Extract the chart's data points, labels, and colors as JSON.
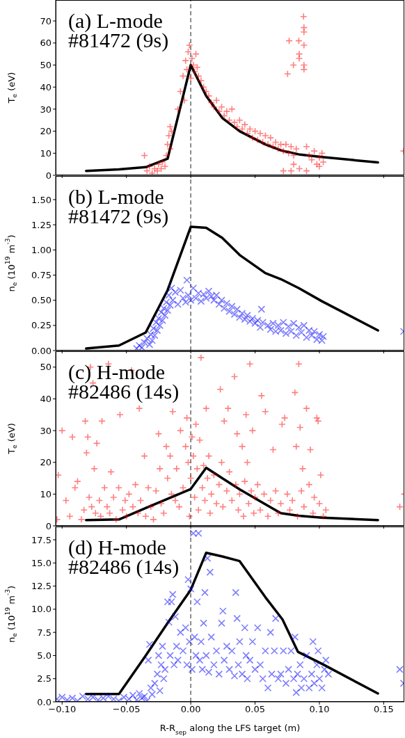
{
  "chart_data": [
    {
      "type": "scatter",
      "ylabel": "T$_{e}$ (eV)",
      "annotations": [
        "(a) L-mode",
        "#81472 (9s)"
      ],
      "xlim": [
        -0.105,
        0.166
      ],
      "xticks": [
        {
          "value": -0.1,
          "label": null
        },
        {
          "value": -0.05,
          "label": null
        },
        {
          "value": 0,
          "label": null
        },
        {
          "value": 0.05,
          "label": null
        },
        {
          "value": 0.1,
          "label": null
        },
        {
          "value": 0.15,
          "label": null
        }
      ],
      "ylim": [
        0,
        79.5
      ],
      "yticks": [
        0,
        10,
        20,
        30,
        40,
        50,
        60,
        70
      ],
      "tick_labels": "y",
      "ref_lines": [
        {
          "axis": "x",
          "value": 0,
          "color": "#808080",
          "line_style": "dashed"
        }
      ],
      "series": [
        {
          "type": "scatter",
          "color": "#ff0000",
          "marker": "plus",
          "x": [
            -0.036,
            -0.034,
            -0.032,
            -0.03,
            -0.028,
            -0.026,
            -0.025,
            -0.023,
            -0.022,
            -0.02,
            -0.019,
            -0.018,
            -0.017,
            -0.016,
            -0.016,
            -0.015,
            -0.01,
            -0.008,
            -0.006,
            -0.005,
            -0.004,
            -0.003,
            -0.002,
            -0.001,
            0,
            0.001,
            0.002,
            0.003,
            0.004,
            0.005,
            0.006,
            0.008,
            0.01,
            0.012,
            0.014,
            0.016,
            0.018,
            0.02,
            0.022,
            0.024,
            0.026,
            0.028,
            0.03,
            0.032,
            0.034,
            0.036,
            0.038,
            0.04,
            0.042,
            0.044,
            0.046,
            0.048,
            0.05,
            0.052,
            0.054,
            0.056,
            0.058,
            0.06,
            0.062,
            0.064,
            0.066,
            0.068,
            0.07,
            0.072,
            0.072,
            0.074,
            0.0753,
            0.076,
            0.0765,
            0.078,
            0.078,
            0.0798,
            0.08,
            0.08,
            0.082,
            0.084,
            0.0843,
            0.0843,
            0.0845,
            0.0877,
            0.088,
            0.088,
            0.088,
            0.088,
            0.088,
            0.09,
            0.09,
            0.092,
            0.094,
            0.096,
            0.098,
            0.1,
            0.1,
            0.102,
            0.103,
            0.1655
          ],
          "values": [
            9,
            2,
            4,
            1,
            3,
            2,
            5,
            3,
            6,
            4,
            9,
            14,
            18,
            22,
            12,
            20,
            30,
            38,
            45,
            34,
            52,
            48,
            56,
            59,
            44,
            53,
            50,
            47,
            55,
            49,
            45,
            43,
            40,
            38,
            36,
            33,
            31,
            34,
            29,
            31,
            27,
            29,
            25,
            30,
            24,
            22,
            25,
            21,
            23,
            19,
            21,
            17,
            20,
            16,
            19,
            15,
            18,
            14,
            17,
            13,
            15,
            12,
            14,
            2,
            11,
            14,
            46,
            10,
            61,
            2,
            13,
            50,
            5,
            9,
            12,
            61,
            55,
            53,
            3,
            72,
            67,
            65,
            59,
            50,
            48,
            2,
            13,
            9,
            7,
            11,
            5,
            8,
            4,
            10,
            6,
            11
          ]
        },
        {
          "type": "line",
          "color": "#000000",
          "marker": "none",
          "line_style": "solid",
          "x": [
            -0.0813,
            -0.0558,
            -0.035,
            -0.018,
            0,
            0.012,
            0.0245,
            0.038,
            0.058,
            0.07,
            0.084,
            0.102,
            0.1455
          ],
          "values": [
            2,
            2.7,
            3.7,
            7.5,
            50,
            36,
            26,
            20,
            14,
            11.3,
            9.5,
            8.3,
            5.8
          ]
        }
      ]
    },
    {
      "type": "scatter",
      "ylabel": "n$_{e}$ (10$^{19}$ m$^{-3}$)",
      "annotations": [
        "(b) L-mode",
        "#81472 (9s)"
      ],
      "xlim": [
        -0.105,
        0.166
      ],
      "xticks": [
        {
          "value": -0.1,
          "label": null
        },
        {
          "value": -0.05,
          "label": null
        },
        {
          "value": 0,
          "label": null
        },
        {
          "value": 0.05,
          "label": null
        },
        {
          "value": 0.1,
          "label": null
        },
        {
          "value": 0.15,
          "label": null
        }
      ],
      "ylim": [
        0,
        1.735
      ],
      "yticks": [
        {
          "value": 0,
          "label": "0.00"
        },
        {
          "value": 0.25,
          "label": "0.25"
        },
        {
          "value": 0.5,
          "label": "0.50"
        },
        {
          "value": 0.75,
          "label": "0.75"
        },
        {
          "value": 1,
          "label": "1.00"
        },
        {
          "value": 1.25,
          "label": "1.25"
        },
        {
          "value": 1.5,
          "label": "1.50"
        }
      ],
      "tick_labels": "y",
      "ref_lines": [
        {
          "axis": "x",
          "value": 0,
          "color": "#808080",
          "line_style": "dashed"
        }
      ],
      "series": [
        {
          "type": "scatter",
          "color": "#0000ff",
          "marker": "cross",
          "x": [
            -0.042,
            -0.04,
            -0.038,
            -0.036,
            -0.034,
            -0.032,
            -0.031,
            -0.03,
            -0.029,
            -0.028,
            -0.027,
            -0.026,
            -0.025,
            -0.024,
            -0.023,
            -0.022,
            -0.021,
            -0.02,
            -0.019,
            -0.018,
            -0.017,
            -0.016,
            -0.015,
            -0.014,
            -0.012,
            -0.01,
            -0.008,
            -0.006,
            -0.004,
            -0.003,
            -0.002,
            0,
            0.002,
            0.004,
            0.006,
            0.008,
            0.01,
            0.012,
            0.014,
            0.016,
            0.018,
            0.02,
            0.022,
            0.024,
            0.026,
            0.028,
            0.03,
            0.032,
            0.034,
            0.036,
            0.038,
            0.04,
            0.042,
            0.044,
            0.046,
            0.048,
            0.05,
            0.052,
            0.054,
            0.055,
            0.056,
            0.06,
            0.062,
            0.064,
            0.066,
            0.068,
            0.07,
            0.072,
            0.074,
            0.076,
            0.078,
            0.08,
            0.082,
            0.084,
            0.086,
            0.088,
            0.09,
            0.092,
            0.094,
            0.096,
            0.098,
            0.1,
            0.102,
            0.103,
            0.1655
          ],
          "values": [
            0.02,
            0.05,
            0.03,
            0.08,
            0.12,
            0.06,
            0.16,
            0.1,
            0.22,
            0.15,
            0.28,
            0.2,
            0.32,
            0.25,
            0.38,
            0.3,
            0.42,
            0.35,
            0.48,
            0.4,
            0.55,
            0.45,
            0.62,
            0.5,
            0.58,
            0.46,
            0.6,
            0.52,
            0.48,
            0.7,
            0.55,
            0.5,
            0.62,
            0.52,
            0.57,
            0.49,
            0.56,
            0.52,
            0.59,
            0.54,
            0.5,
            0.55,
            0.46,
            0.5,
            0.42,
            0.47,
            0.39,
            0.44,
            0.36,
            0.41,
            0.33,
            0.37,
            0.31,
            0.35,
            0.29,
            0.32,
            0.27,
            0.3,
            0.23,
            0.41,
            0.28,
            0.25,
            0.21,
            0.27,
            0.19,
            0.25,
            0.2,
            0.28,
            0.17,
            0.24,
            0.19,
            0.27,
            0.15,
            0.23,
            0.18,
            0.25,
            0.13,
            0.2,
            0.15,
            0.19,
            0.11,
            0.16,
            0.1,
            0.14,
            0.19
          ]
        },
        {
          "type": "line",
          "color": "#000000",
          "marker": "none",
          "line_style": "solid",
          "x": [
            -0.0813,
            -0.0558,
            -0.035,
            -0.018,
            0,
            0.012,
            0.0245,
            0.038,
            0.058,
            0.07,
            0.084,
            0.102,
            0.1455
          ],
          "values": [
            0.02,
            0.05,
            0.18,
            0.6,
            1.23,
            1.22,
            1.12,
            0.95,
            0.77,
            0.71,
            0.62,
            0.49,
            0.2
          ]
        }
      ]
    },
    {
      "type": "scatter",
      "ylabel": "T$_{e}$ (eV)",
      "annotations": [
        "(c) H-mode",
        "#82486 (14s)"
      ],
      "xlim": [
        -0.105,
        0.166
      ],
      "xticks": [
        {
          "value": -0.1,
          "label": null
        },
        {
          "value": -0.05,
          "label": null
        },
        {
          "value": 0,
          "label": null
        },
        {
          "value": 0.05,
          "label": null
        },
        {
          "value": 0.1,
          "label": null
        },
        {
          "value": 0.15,
          "label": null
        }
      ],
      "ylim": [
        0,
        55
      ],
      "yticks": [
        0,
        10,
        20,
        30,
        40,
        50
      ],
      "tick_labels": "y",
      "ref_lines": [
        {
          "axis": "x",
          "value": 0,
          "color": "#808080",
          "line_style": "dashed"
        }
      ],
      "series": [
        {
          "type": "scatter",
          "color": "#ff0000",
          "marker": "plus",
          "x": [
            -0.104,
            -0.103,
            -0.1,
            -0.097,
            -0.094,
            -0.092,
            -0.09,
            -0.088,
            -0.085,
            -0.083,
            -0.082,
            -0.081,
            -0.08,
            -0.079,
            -0.078,
            -0.077,
            -0.076,
            -0.075,
            -0.074,
            -0.073,
            -0.071,
            -0.07,
            -0.069,
            -0.067,
            -0.065,
            -0.064,
            -0.063,
            -0.062,
            -0.06,
            -0.058,
            -0.056,
            -0.055,
            -0.053,
            -0.051,
            -0.05,
            -0.048,
            -0.046,
            -0.045,
            -0.043,
            -0.041,
            -0.04,
            -0.039,
            -0.036,
            -0.035,
            -0.033,
            -0.031,
            -0.029,
            -0.027,
            -0.025,
            -0.024,
            -0.023,
            -0.021,
            -0.019,
            -0.018,
            -0.016,
            -0.015,
            -0.014,
            -0.012,
            -0.011,
            -0.009,
            -0.008,
            -0.006,
            -0.004,
            -0.003,
            -0.002,
            -0.001,
            0,
            0.001,
            0.002,
            0.003,
            0.004,
            0.005,
            0.006,
            0.007,
            0.008,
            0.009,
            0.01,
            0.011,
            0.012,
            0.013,
            0.014,
            0.015,
            0.016,
            0.018,
            0.02,
            0.022,
            0.023,
            0.024,
            0.025,
            0.026,
            0.028,
            0.029,
            0.03,
            0.032,
            0.034,
            0.035,
            0.036,
            0.037,
            0.038,
            0.04,
            0.041,
            0.042,
            0.043,
            0.044,
            0.045,
            0.046,
            0.047,
            0.048,
            0.049,
            0.05,
            0.052,
            0.054,
            0.055,
            0.057,
            0.058,
            0.06,
            0.062,
            0.064,
            0.066,
            0.068,
            0.07,
            0.071,
            0.073,
            0.075,
            0.077,
            0.079,
            0.081,
            0.082,
            0.083,
            0.084,
            0.085,
            0.086,
            0.087,
            0.088,
            0.09,
            0.092,
            0.093,
            0.095,
            0.096,
            0.098,
            0.099,
            0.1,
            0.101,
            0.103,
            0.105,
            0.1625,
            0.166
          ],
          "values": [
            2,
            16,
            30,
            8,
            3,
            28,
            12,
            14,
            2,
            5,
            33,
            23,
            28,
            9,
            50,
            6,
            45,
            18,
            4,
            26,
            8,
            3,
            33,
            12,
            6,
            51,
            4,
            17,
            9,
            2,
            12,
            35,
            5,
            8,
            3,
            10,
            49,
            6,
            13,
            4,
            37,
            8,
            22,
            3,
            12,
            6,
            2,
            11,
            29,
            18,
            7,
            4,
            25,
            15,
            22,
            10,
            36,
            8,
            18,
            6,
            30,
            12,
            25,
            34,
            20,
            3,
            15,
            28,
            22,
            9,
            32,
            18,
            5,
            27,
            53,
            12,
            19,
            8,
            37,
            15,
            22,
            4,
            10,
            16,
            7,
            13,
            43,
            20,
            6,
            33,
            11,
            37,
            17,
            8,
            47,
            13,
            29,
            5,
            10,
            25,
            3,
            14,
            35,
            20,
            7,
            51,
            11,
            30,
            4,
            9,
            13,
            5,
            41,
            10,
            36,
            3,
            8,
            24,
            11,
            4,
            7,
            32,
            34,
            10,
            5,
            8,
            42,
            25,
            3,
            51,
            31,
            11,
            18,
            6,
            37,
            13,
            24,
            4,
            9,
            34,
            33,
            7,
            16,
            3,
            5,
            6,
            10
          ]
        },
        {
          "type": "line",
          "color": "#000000",
          "marker": "none",
          "line_style": "solid",
          "x": [
            -0.0813,
            -0.0558,
            -0.035,
            -0.018,
            0,
            0.012,
            0.0245,
            0.038,
            0.058,
            0.07,
            0.084,
            0.102,
            0.1455
          ],
          "values": [
            1.8,
            2,
            5.6,
            8.5,
            11.6,
            18.3,
            15,
            11.5,
            6.8,
            4,
            3.2,
            2.6,
            1.8
          ]
        }
      ]
    },
    {
      "type": "scatter",
      "ylabel": "n$_{e}$ (10$^{19}$ m$^{-3}$)",
      "xlabel": "R-R$_{sep}$ along the LFS target (m)",
      "annotations": [
        "(d) H-mode",
        "#82486 (14s)"
      ],
      "xlim": [
        -0.105,
        0.166
      ],
      "xticks": [
        {
          "value": -0.1,
          "label": "−0.10"
        },
        {
          "value": -0.05,
          "label": "−0.05"
        },
        {
          "value": 0,
          "label": "0.00"
        },
        {
          "value": 0.05,
          "label": "0.05"
        },
        {
          "value": 0.1,
          "label": "0.10"
        },
        {
          "value": 0.15,
          "label": "0.15"
        }
      ],
      "ylim": [
        0,
        18.93
      ],
      "yticks": [
        {
          "value": 0,
          "label": "0.0"
        },
        {
          "value": 2.5,
          "label": "2.5"
        },
        {
          "value": 5,
          "label": "5.0"
        },
        {
          "value": 7.5,
          "label": "7.5"
        },
        {
          "value": 10,
          "label": "10.0"
        },
        {
          "value": 12.5,
          "label": "12.5"
        },
        {
          "value": 15,
          "label": "15.0"
        },
        {
          "value": 17.5,
          "label": "17.5"
        }
      ],
      "ref_lines": [
        {
          "axis": "x",
          "value": 0,
          "color": "#808080",
          "line_style": "dashed"
        }
      ],
      "series": [
        {
          "type": "scatter",
          "color": "#0000ff",
          "marker": "cross",
          "x": [
            -0.104,
            -0.1,
            -0.096,
            -0.092,
            -0.088,
            -0.084,
            -0.08,
            -0.076,
            -0.072,
            -0.068,
            -0.064,
            -0.06,
            -0.056,
            -0.052,
            -0.048,
            -0.045,
            -0.042,
            -0.04,
            -0.038,
            -0.036,
            -0.034,
            -0.033,
            -0.032,
            -0.031,
            -0.03,
            -0.028,
            -0.026,
            -0.025,
            -0.024,
            -0.023,
            -0.022,
            -0.021,
            -0.02,
            -0.018,
            -0.017,
            -0.016,
            -0.015,
            -0.014,
            -0.013,
            -0.012,
            -0.011,
            -0.01,
            -0.008,
            -0.006,
            -0.004,
            -0.003,
            -0.002,
            -0.001,
            0,
            0.001,
            0.002,
            0.003,
            0.004,
            0.005,
            0.006,
            0.007,
            0.008,
            0.009,
            0.01,
            0.011,
            0.012,
            0.013,
            0.014,
            0.015,
            0.016,
            0.018,
            0.02,
            0.022,
            0.024,
            0.025,
            0.026,
            0.028,
            0.03,
            0.032,
            0.034,
            0.035,
            0.036,
            0.037,
            0.038,
            0.04,
            0.042,
            0.043,
            0.044,
            0.046,
            0.048,
            0.05,
            0.052,
            0.054,
            0.056,
            0.058,
            0.06,
            0.062,
            0.063,
            0.065,
            0.066,
            0.068,
            0.07,
            0.072,
            0.074,
            0.076,
            0.078,
            0.08,
            0.081,
            0.082,
            0.083,
            0.085,
            0.086,
            0.088,
            0.09,
            0.092,
            0.094,
            0.095,
            0.096,
            0.098,
            0.099,
            0.1,
            0.102,
            0.104,
            0.105,
            0.107,
            0.1625,
            0.1655
          ],
          "values": [
            0.3,
            0.5,
            0.2,
            0.4,
            0.1,
            0.6,
            0.3,
            0.5,
            0.2,
            0.4,
            0.6,
            0.3,
            0.1,
            0.5,
            0.3,
            0.7,
            0.2,
            0.9,
            0.4,
            0.6,
            0.1,
            4.5,
            6.2,
            1.5,
            0.8,
            2,
            3,
            5,
            1.2,
            4,
            6,
            2.5,
            3.5,
            10.8,
            8.6,
            5,
            10.8,
            11.6,
            4,
            9.2,
            6,
            4.5,
            7.5,
            5.5,
            8,
            4,
            13.2,
            6.5,
            12.2,
            3.5,
            18.2,
            7,
            5,
            10.8,
            18.2,
            4.5,
            6.5,
            3.5,
            8.5,
            11.8,
            5,
            15.5,
            3.2,
            14,
            7,
            4,
            5.5,
            3,
            8.5,
            9.8,
            4.5,
            6,
            3.5,
            5.5,
            2.8,
            11.8,
            9,
            4,
            6.5,
            3,
            8,
            5,
            2.5,
            4.5,
            6.5,
            3.5,
            8,
            4,
            2.5,
            5.5,
            1.5,
            7.5,
            3,
            5.5,
            9,
            2.5,
            3,
            5.5,
            2,
            3.5,
            5.5,
            2.5,
            7,
            1,
            3,
            4,
            1.5,
            2.5,
            5,
            1.5,
            3,
            6.5,
            2,
            4,
            5.5,
            2.5,
            1.5,
            3.5,
            4.5,
            3,
            3.5,
            2
          ]
        },
        {
          "type": "line",
          "color": "#000000",
          "marker": "none",
          "line_style": "solid",
          "x": [
            -0.0813,
            -0.0558,
            -0.035,
            -0.018,
            0,
            0.012,
            0.0245,
            0.038,
            0.058,
            0.0713,
            0.0833,
            0.102,
            0.1455
          ],
          "values": [
            0.85,
            0.85,
            5,
            8.5,
            12.1,
            16.1,
            15.7,
            15.2,
            11.3,
            8.9,
            5.4,
            4.1,
            0.9
          ]
        }
      ]
    }
  ]
}
